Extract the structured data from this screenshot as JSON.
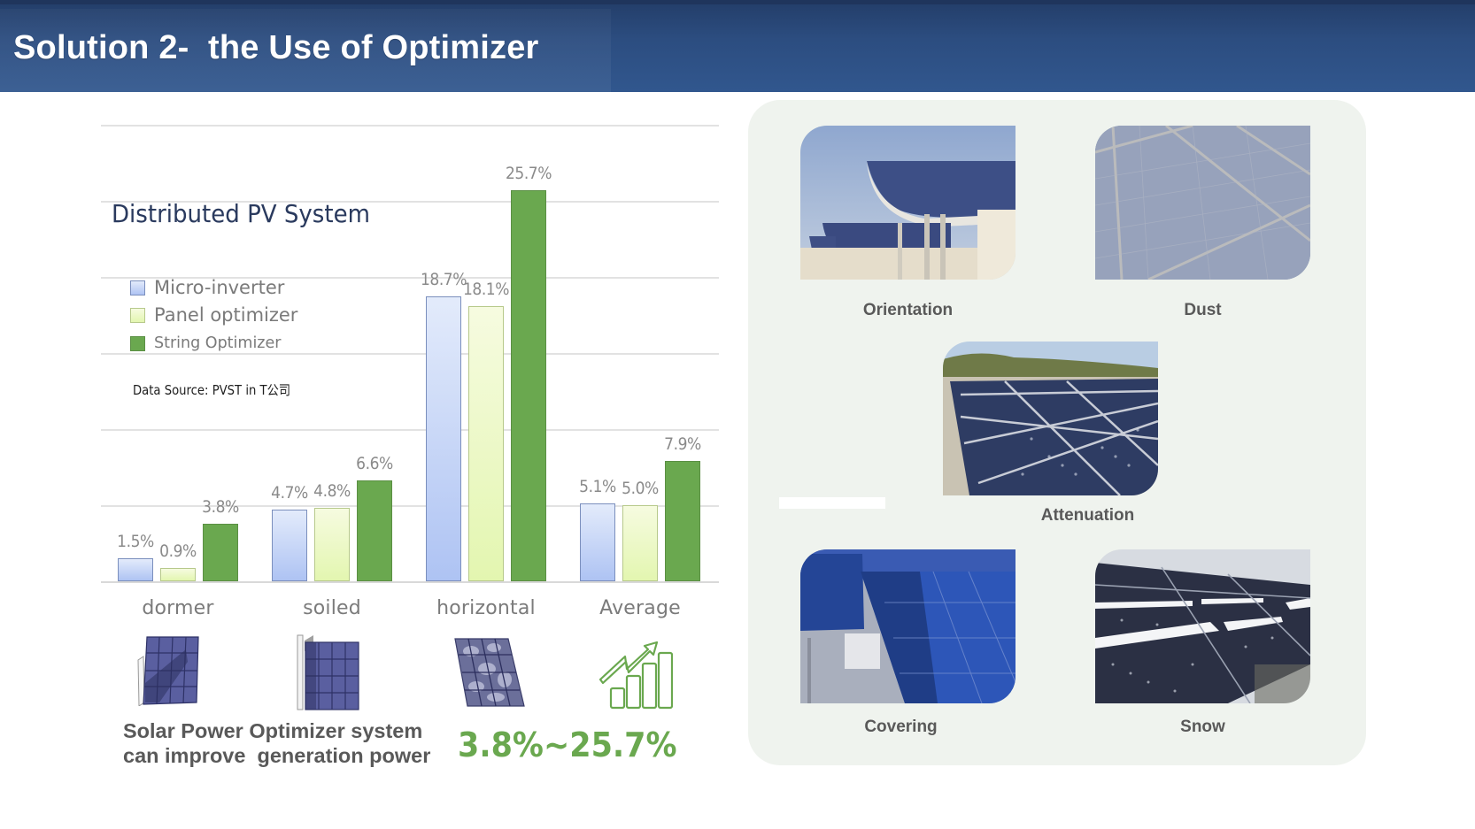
{
  "header": {
    "title": "Solution 2-  the Use of Optimizer",
    "background": "#2c4d80"
  },
  "chart": {
    "title": "Distributed PV System",
    "data_source": "Data Source: PVST in T公司",
    "legend": [
      {
        "label": "Micro-inverter",
        "color": "#b8cbf3"
      },
      {
        "label": "Panel optimizer",
        "color": "#eaf8c0"
      },
      {
        "label": "String Optimizer",
        "color": "#6aa84f"
      }
    ],
    "categories": [
      "dormer",
      "soiled",
      "horizontal",
      "Average"
    ],
    "value_labels": [
      [
        "1.5%",
        "0.9%",
        "3.8%"
      ],
      [
        "4.7%",
        "4.8%",
        "6.6%"
      ],
      [
        "18.7%",
        "18.1%",
        "25.7%"
      ],
      [
        "5.1%",
        "5.0%",
        "7.9%"
      ]
    ]
  },
  "chart_data": {
    "type": "bar",
    "title": "Distributed PV System",
    "categories": [
      "dormer",
      "soiled",
      "horizontal",
      "Average"
    ],
    "series": [
      {
        "name": "Micro-inverter",
        "values": [
          1.5,
          4.7,
          18.7,
          5.1
        ],
        "color": "#b8cbf3"
      },
      {
        "name": "Panel optimizer",
        "values": [
          0.9,
          4.8,
          18.1,
          5.0
        ],
        "color": "#eaf8c0"
      },
      {
        "name": "String Optimizer",
        "values": [
          3.8,
          6.6,
          25.7,
          7.9
        ],
        "color": "#6aa84f"
      }
    ],
    "xlabel": "",
    "ylabel": "",
    "ylim": [
      0,
      30
    ],
    "grid": true,
    "gridline_interval": 5,
    "y_tick_labels_shown": false,
    "legend_position": "upper-left",
    "annotation": "Data Source: PVST in T公司",
    "value_format": "percent"
  },
  "icons": [
    {
      "name": "dormer-shaded-panel-icon",
      "category": "dormer"
    },
    {
      "name": "soiled-panel-icon",
      "category": "soiled"
    },
    {
      "name": "horizontal-dirty-panel-icon",
      "category": "horizontal"
    },
    {
      "name": "growth-chart-icon",
      "category": "Average"
    }
  ],
  "summary": {
    "text": "Solar Power Optimizer system\ncan improve  generation power",
    "range": "3.8%~25.7%",
    "range_color": "#6aa84f"
  },
  "panel": {
    "background": "#eff3ee",
    "photos": [
      {
        "label": "Orientation"
      },
      {
        "label": "Dust"
      },
      {
        "label": "Attenuation"
      },
      {
        "label": "Covering"
      },
      {
        "label": "Snow"
      }
    ]
  }
}
